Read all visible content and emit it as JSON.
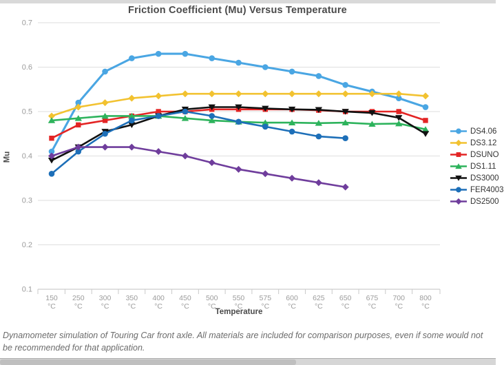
{
  "page": {
    "title": "Friction Coefficient (Mu) Versus Temperature",
    "footer": "Dynamometer simulation of Touring Car front axle. All materials are included for comparison purposes, even if some would not be recommended for that application."
  },
  "colors": {
    "grid": "#dedede",
    "axis": "#c2c2c2",
    "tick": "#c9c9c9",
    "tick_label": "#9b9b9b",
    "title_text": "#4a4a4a",
    "legend_text": "#333333",
    "footer_text": "#6b6b6b"
  },
  "chart_data": {
    "type": "line",
    "title": "Friction Coefficient (Mu) Versus Temperature",
    "xlabel": "Temperature",
    "ylabel": "Mu",
    "x_unit": "°C",
    "categories": [
      "150",
      "250",
      "300",
      "350",
      "400",
      "450",
      "500",
      "550",
      "575",
      "600",
      "625",
      "650",
      "675",
      "700",
      "800"
    ],
    "ylim": [
      0.1,
      0.7
    ],
    "ytick_step": 0.1,
    "grid": true,
    "legend_position": "right",
    "series": [
      {
        "name": "DS4.06",
        "color": "#4aa6e3",
        "marker": "circle",
        "values": [
          0.41,
          0.52,
          0.59,
          0.62,
          0.63,
          0.63,
          0.62,
          0.61,
          0.6,
          0.59,
          0.58,
          0.56,
          0.545,
          0.53,
          0.51
        ]
      },
      {
        "name": "DS3.12",
        "color": "#f2c230",
        "marker": "diamond",
        "values": [
          0.49,
          0.51,
          0.52,
          0.53,
          0.535,
          0.54,
          0.54,
          0.54,
          0.54,
          0.54,
          0.54,
          0.54,
          0.54,
          0.54,
          0.535
        ]
      },
      {
        "name": "DSUNO",
        "color": "#e32424",
        "marker": "square",
        "values": [
          0.44,
          0.47,
          0.48,
          0.49,
          0.5,
          0.5,
          0.505,
          0.505,
          0.505,
          0.505,
          0.503,
          0.5,
          0.5,
          0.5,
          0.48
        ]
      },
      {
        "name": "DS1.11",
        "color": "#2db35c",
        "marker": "triangle-up",
        "values": [
          0.48,
          0.485,
          0.49,
          0.49,
          0.49,
          0.485,
          0.48,
          0.477,
          0.475,
          0.475,
          0.474,
          0.475,
          0.472,
          0.473,
          0.46
        ]
      },
      {
        "name": "DS3000",
        "color": "#111111",
        "marker": "triangle-down",
        "values": [
          0.39,
          0.42,
          0.455,
          0.47,
          0.49,
          0.505,
          0.51,
          0.51,
          0.507,
          0.505,
          0.504,
          0.5,
          0.497,
          0.486,
          0.45
        ]
      },
      {
        "name": "FER4003",
        "color": "#1d6fb8",
        "marker": "circle",
        "values": [
          0.36,
          0.41,
          0.45,
          0.48,
          0.49,
          0.5,
          0.49,
          0.477,
          0.466,
          0.455,
          0.444,
          0.44,
          null,
          null,
          null
        ]
      },
      {
        "name": "DS2500",
        "color": "#6f3d9c",
        "marker": "diamond",
        "values": [
          0.4,
          0.42,
          0.42,
          0.42,
          0.41,
          0.4,
          0.385,
          0.37,
          0.36,
          0.35,
          0.34,
          0.33,
          null,
          null,
          null
        ]
      }
    ]
  }
}
